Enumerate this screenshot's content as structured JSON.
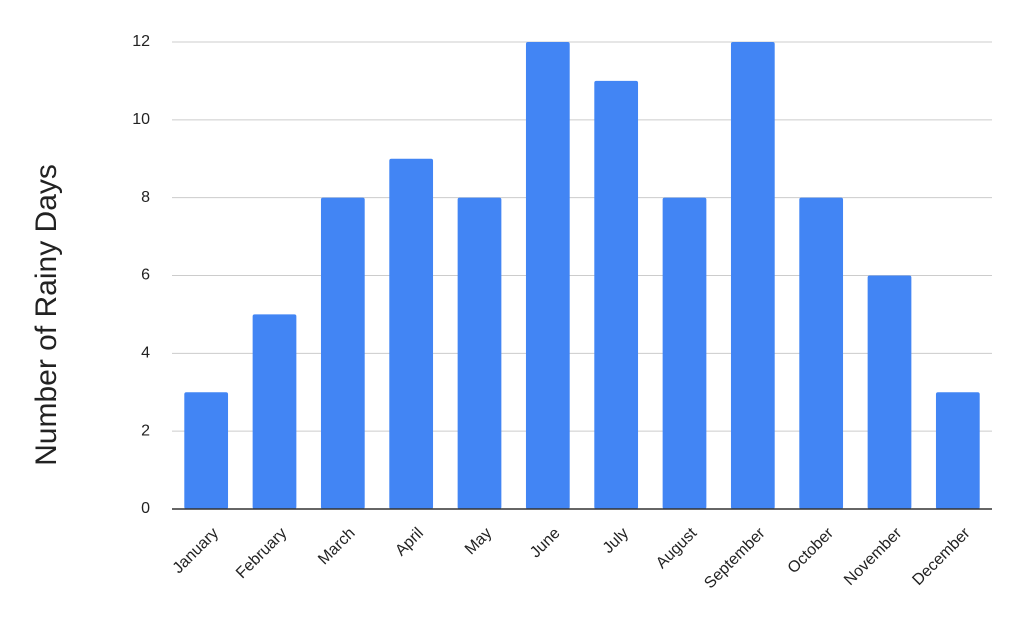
{
  "chart_data": {
    "type": "bar",
    "y_label": "Number of Rainy Days",
    "categories": [
      "January",
      "February",
      "March",
      "April",
      "May",
      "June",
      "July",
      "August",
      "September",
      "October",
      "November",
      "December"
    ],
    "values": [
      3,
      5,
      8,
      9,
      8,
      12,
      11,
      8,
      12,
      8,
      6,
      3
    ],
    "color": "#4285f4",
    "ylim": [
      0,
      12
    ],
    "yticks": [
      0,
      2,
      4,
      6,
      8,
      10,
      12
    ],
    "grid": true
  }
}
